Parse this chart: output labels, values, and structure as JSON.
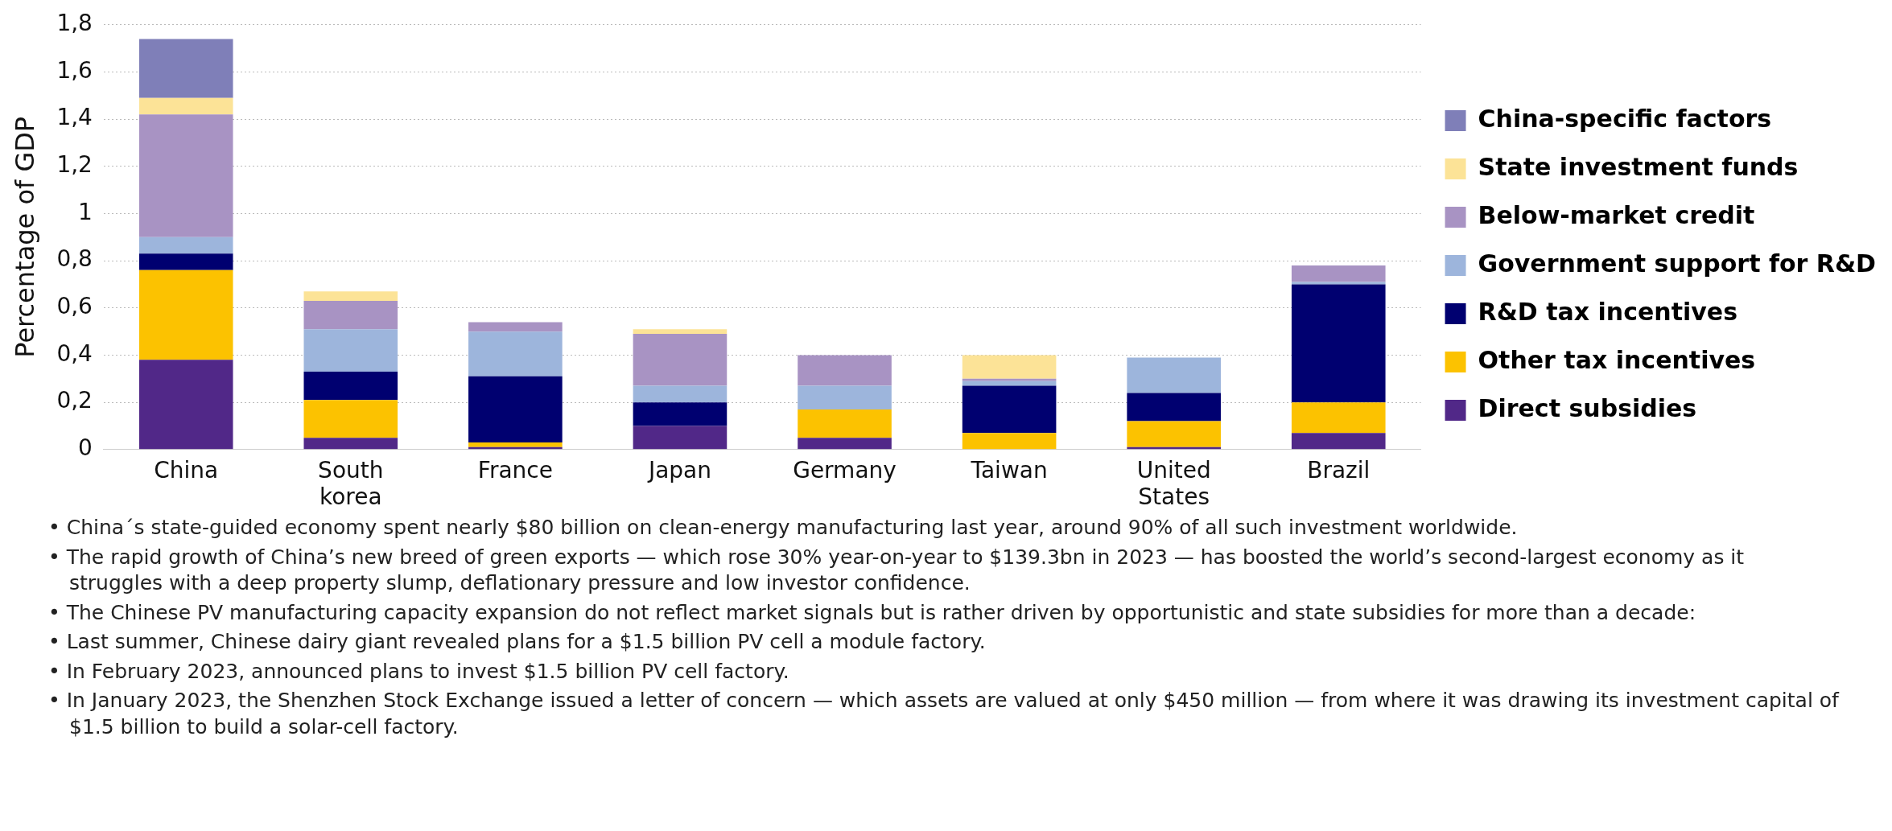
{
  "chart_data": {
    "type": "bar",
    "stacked": true,
    "ylabel": "Percentage of GDP",
    "categories": [
      "China",
      "South korea",
      "France",
      "Japan",
      "Germany",
      "Taiwan",
      "United States",
      "Brazil"
    ],
    "series": [
      {
        "name": "Direct subsidies",
        "color": "#512888",
        "values": [
          0.38,
          0.05,
          0.01,
          0.1,
          0.05,
          0,
          0.01,
          0.07
        ]
      },
      {
        "name": "Other tax incentives",
        "color": "#fcc200",
        "values": [
          0.38,
          0.16,
          0.02,
          0,
          0.12,
          0.07,
          0.11,
          0.13
        ]
      },
      {
        "name": "R&D tax incentives",
        "color": "#000070",
        "values": [
          0.07,
          0.12,
          0.28,
          0.1,
          0,
          0.2,
          0.12,
          0.5
        ]
      },
      {
        "name": "Government support for R&D",
        "color": "#9db5dc",
        "values": [
          0.07,
          0.18,
          0.19,
          0.07,
          0.1,
          0.02,
          0.15,
          0.01
        ]
      },
      {
        "name": "Below-market credit",
        "color": "#a893c3",
        "values": [
          0.52,
          0.12,
          0.04,
          0.22,
          0.13,
          0.01,
          0,
          0.07
        ]
      },
      {
        "name": "State investment funds",
        "color": "#fce397",
        "values": [
          0.07,
          0.04,
          0,
          0.02,
          0,
          0.1,
          0,
          0
        ]
      },
      {
        "name": "China-specific factors",
        "color": "#7f7fb8",
        "values": [
          0.25,
          0,
          0,
          0,
          0,
          0,
          0,
          0
        ]
      }
    ],
    "ylim": [
      0,
      1.8
    ],
    "yticks": [
      {
        "value": 0,
        "label": "0"
      },
      {
        "value": 0.2,
        "label": "0,2"
      },
      {
        "value": 0.4,
        "label": "0,4"
      },
      {
        "value": 0.6,
        "label": "0,6"
      },
      {
        "value": 0.8,
        "label": "0,8"
      },
      {
        "value": 1,
        "label": "1"
      },
      {
        "value": 1.2,
        "label": "1,2"
      },
      {
        "value": 1.4,
        "label": "1,4"
      },
      {
        "value": 1.6,
        "label": "1,6"
      },
      {
        "value": 1.8,
        "label": "1,8"
      }
    ],
    "grid": "y",
    "legend": "right",
    "annotations": [
      "• China´s state-guided economy spent nearly $80 billion on clean-energy manufacturing last year, around 90% of all such investment worldwide.",
      "• The rapid growth of China’s new breed of green exports — which rose 30% year-on-year to $139.3bn in 2023 — has boosted the world’s second-largest economy as it struggles with a deep property slump, deflationary pressure and low investor confidence.",
      "• The Chinese PV manufacturing capacity expansion do not reflect market signals but is rather driven by opportunistic and state subsidies for more than a decade:",
      "• Last summer, Chinese dairy giant revealed plans for a $1.5 billion PV cell a module factory.",
      "• In February 2023, announced plans to invest $1.5 billion PV cell factory.",
      "• In January 2023, the Shenzhen Stock Exchange issued a letter of concern — which assets are valued at only $450 million — from where it was drawing its investment capital of $1.5 billion to build a solar-cell factory."
    ]
  }
}
